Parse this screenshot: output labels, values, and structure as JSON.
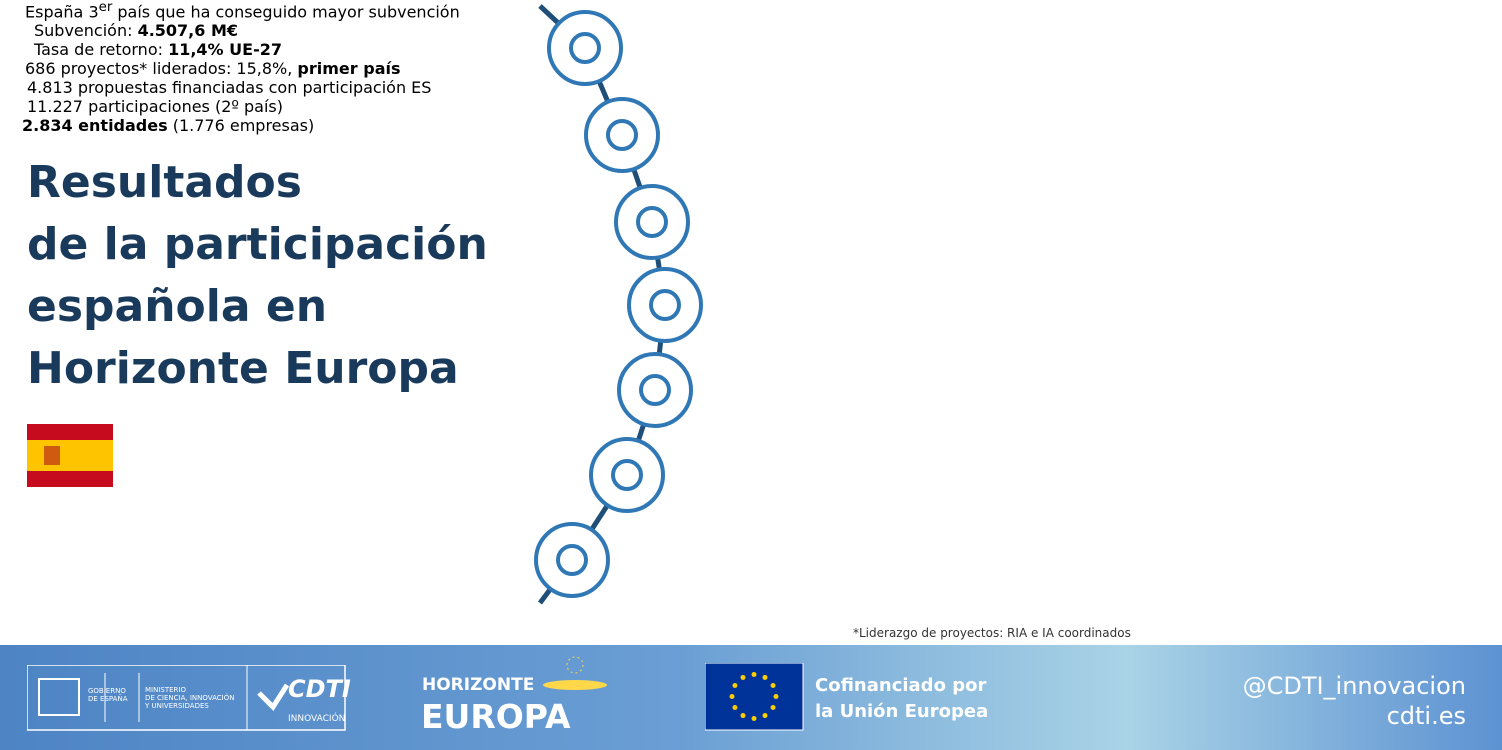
{
  "title": [
    "Resultados",
    "de la participación",
    "española en",
    "Horizonte Europa"
  ],
  "items": [
    [
      {
        "text": "España 3"
      },
      {
        "text": "er",
        "style": "sup"
      },
      {
        "text": " país que ha conseguido mayor subvención"
      }
    ],
    [
      {
        "text": "Subvención: "
      },
      {
        "text": "4.507,6 M€",
        "style": "bold"
      }
    ],
    [
      {
        "text": "Tasa de retorno: "
      },
      {
        "text": "11,4% UE-27",
        "style": "bold"
      }
    ],
    [
      {
        "text": "686 proyectos* liderados: 15,8%, "
      },
      {
        "text": "primer país",
        "style": "bold"
      }
    ],
    [
      {
        "text": "4.813 propuestas financiadas con participación ES"
      }
    ],
    [
      {
        "text": "11.227 participaciones (2º país)"
      }
    ],
    [
      {
        "text": "2.834 entidades",
        "style": "bold"
      },
      {
        "text": " (1.776 empresas)"
      }
    ]
  ],
  "footnote": "*Liderazgo de proyectos: RIA e IA coordinados",
  "footer": {
    "gobierno": [
      "GOBIERNO",
      "DE ESPAÑA"
    ],
    "ministerio": [
      "MINISTERIO",
      "DE CIENCIA, INNOVACIÓN",
      "Y UNIVERSIDADES"
    ],
    "cdti": "CDTI",
    "cdti_sub": "INNOVACIÓN",
    "horizonte": "HORIZONTE",
    "europa": "EUROPA",
    "cofin": [
      "Cofinanciado por",
      "la Unión Europea"
    ],
    "handle": "@CDTI_innovacion",
    "web": "cdti.es"
  }
}
